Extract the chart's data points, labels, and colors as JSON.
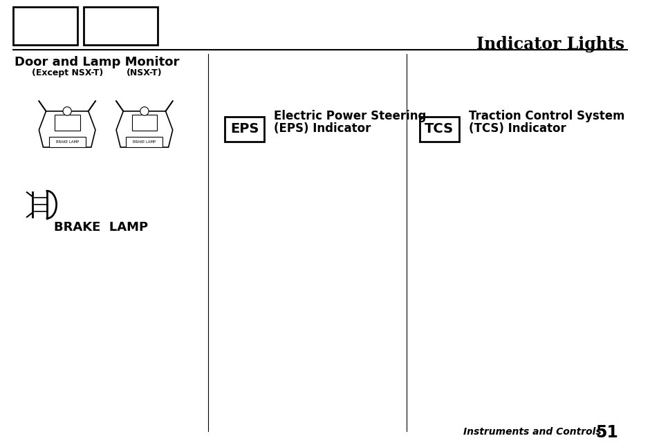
{
  "bg_color": "#ffffff",
  "title": "Indicator Lights",
  "title_fontsize": 17,
  "section1_header": "Door and Lamp Monitor",
  "section1_sub1": "(Except NSX-T)",
  "section1_sub2": "(NSX-T)",
  "brake_lamp_label": "BRAKE  LAMP",
  "eps_box_label": "EPS",
  "eps_text1": "Electric Power Steering",
  "eps_text2": "(EPS) Indicator",
  "tcs_box_label": "TCS",
  "tcs_text1": "Traction Control System",
  "tcs_text2": "(TCS) Indicator",
  "footer_text": "Instruments and Controls",
  "footer_page": "51"
}
